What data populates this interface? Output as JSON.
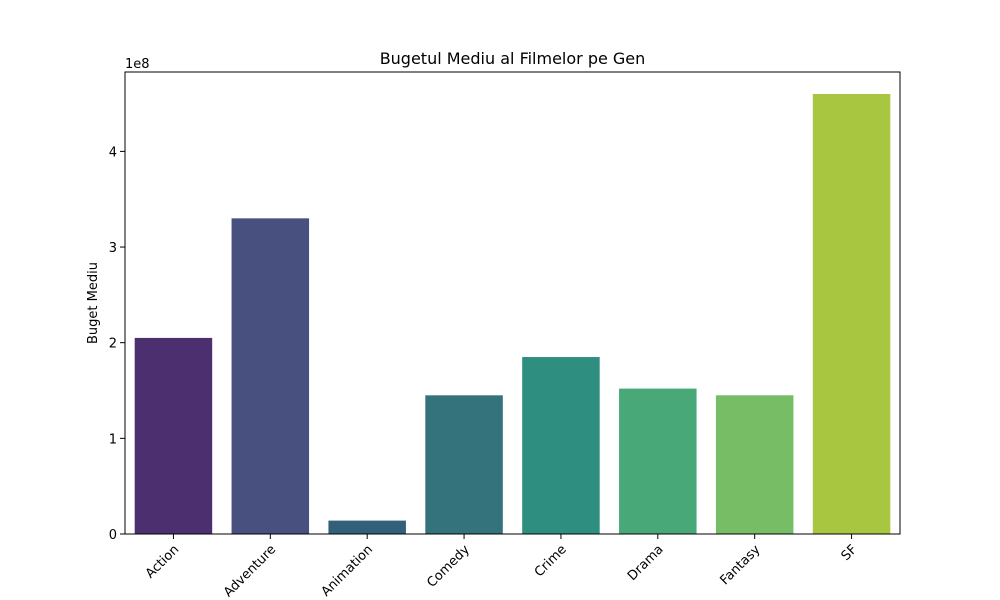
{
  "chart_data": {
    "type": "bar",
    "title": "Bugetul Mediu al Filmelor pe Gen",
    "xlabel": "",
    "ylabel": "Buget Mediu",
    "scale_label": "1e8",
    "scale_factor": 100000000,
    "categories": [
      "Action",
      "Adventure",
      "Animation",
      "Comedy",
      "Crime",
      "Drama",
      "Fantasy",
      "SF"
    ],
    "values": [
      205000000,
      330000000,
      14000000,
      145000000,
      185000000,
      152000000,
      145000000,
      460000000
    ],
    "colors": [
      "#4b2f6e",
      "#48507f",
      "#32607a",
      "#34737c",
      "#2e8e80",
      "#48a878",
      "#76bd66",
      "#a9c641"
    ],
    "ylim": [
      0,
      483000000
    ],
    "yticks": [
      0,
      100000000,
      200000000,
      300000000,
      400000000
    ],
    "ytick_labels": [
      "0",
      "1",
      "2",
      "3",
      "4"
    ],
    "grid": false,
    "legend": "none"
  }
}
